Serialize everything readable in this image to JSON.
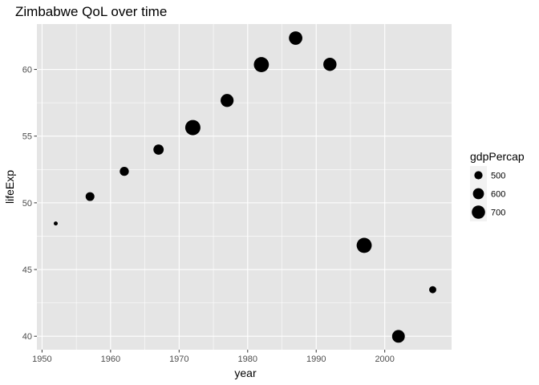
{
  "chart_data": {
    "type": "scatter",
    "title": "Zimbabwe QoL over time",
    "xlabel": "year",
    "ylabel": "lifeExp",
    "xlim": [
      1949.25,
      2009.75
    ],
    "ylim": [
      38.99,
      63.4
    ],
    "x_ticks": [
      1950,
      1960,
      1970,
      1980,
      1990,
      2000
    ],
    "y_ticks": [
      40,
      45,
      50,
      55,
      60
    ],
    "background": "#e5e5e5",
    "grid": true,
    "grid_color": "#ffffff",
    "point_color": "#000000",
    "size_variable": "gdpPercap",
    "legend": {
      "title": "gdpPercap",
      "position": "right",
      "entries": [
        {
          "label": "500",
          "value": 500
        },
        {
          "label": "600",
          "value": 600
        },
        {
          "label": "700",
          "value": 700
        }
      ]
    },
    "points": [
      {
        "x": 1952,
        "y": 48.45,
        "size": 406.9
      },
      {
        "x": 1957,
        "y": 50.47,
        "size": 518.8
      },
      {
        "x": 1962,
        "y": 52.36,
        "size": 527.3
      },
      {
        "x": 1967,
        "y": 53.99,
        "size": 569.8
      },
      {
        "x": 1972,
        "y": 55.64,
        "size": 799.4
      },
      {
        "x": 1977,
        "y": 57.67,
        "size": 685.6
      },
      {
        "x": 1982,
        "y": 60.36,
        "size": 788.9
      },
      {
        "x": 1987,
        "y": 62.35,
        "size": 706.2
      },
      {
        "x": 1992,
        "y": 60.38,
        "size": 693.4
      },
      {
        "x": 1997,
        "y": 46.81,
        "size": 792.4
      },
      {
        "x": 2002,
        "y": 39.99,
        "size": 672.0
      },
      {
        "x": 2007,
        "y": 43.49,
        "size": 469.7
      }
    ]
  }
}
